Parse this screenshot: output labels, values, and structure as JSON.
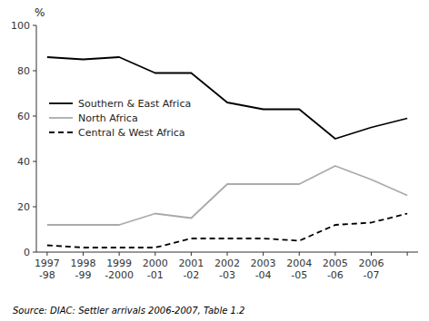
{
  "chart_data": {
    "type": "line",
    "y_label": "%",
    "categories": [
      "1997\n-98",
      "1998\n-99",
      "1999\n-2000",
      "2000\n-01",
      "2001\n-02",
      "2002\n-03",
      "2003\n-04",
      "2004\n-05",
      "2005\n-06",
      "2006\n-07",
      null
    ],
    "series": [
      {
        "name": "Southern & East Africa",
        "color": "#000000",
        "line_style": "solid",
        "values": [
          86,
          85,
          86,
          79,
          79,
          66,
          63,
          63,
          50,
          55,
          59
        ]
      },
      {
        "name": "North Africa",
        "color": "#aaaaaa",
        "line_style": "solid",
        "values": [
          12,
          12,
          12,
          17,
          15,
          30,
          30,
          30,
          38,
          32,
          25
        ]
      },
      {
        "name": "Central & West Africa",
        "color": "#000000",
        "line_style": "dashed",
        "values": [
          3,
          2,
          2,
          2,
          6,
          6,
          6,
          5,
          12,
          13,
          17
        ]
      }
    ],
    "ylim": [
      0,
      100
    ],
    "yticks": [
      0,
      20,
      40,
      60,
      80,
      100
    ],
    "grid": false,
    "legend": "upper left",
    "annotations": [
      "Source: DIAC: Settler arrivals 2006-2007, Table 1.2"
    ]
  }
}
